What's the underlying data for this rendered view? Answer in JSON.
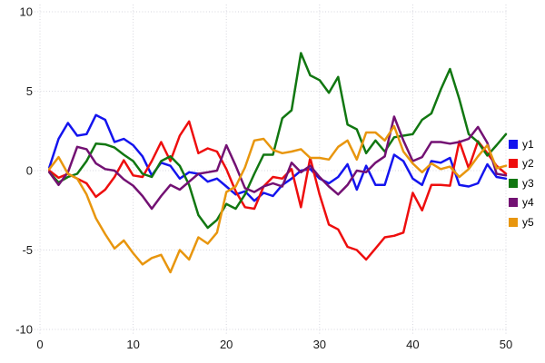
{
  "chart_data": {
    "type": "line",
    "title": "",
    "xlabel": "",
    "ylabel": "",
    "xlim": [
      0,
      50
    ],
    "ylim": [
      -10,
      10
    ],
    "x_ticks": [
      0,
      10,
      20,
      30,
      40,
      50
    ],
    "y_ticks": [
      -10,
      -5,
      0,
      5,
      10
    ],
    "grid": "dotted",
    "legend_position": "right-center",
    "x": [
      1,
      2,
      3,
      4,
      5,
      6,
      7,
      8,
      9,
      10,
      11,
      12,
      13,
      14,
      15,
      16,
      17,
      18,
      19,
      20,
      21,
      22,
      23,
      24,
      25,
      26,
      27,
      28,
      29,
      30,
      31,
      32,
      33,
      34,
      35,
      36,
      37,
      38,
      39,
      40,
      41,
      42,
      43,
      44,
      45,
      46,
      47,
      48,
      49,
      50
    ],
    "series": [
      {
        "name": "y1",
        "color": "#1414ee",
        "values": [
          0.2,
          2.0,
          3.0,
          2.2,
          2.3,
          3.5,
          3.2,
          1.8,
          2.0,
          1.6,
          0.9,
          -0.3,
          0.5,
          0.3,
          -0.5,
          -0.1,
          -0.2,
          -0.7,
          -0.5,
          -1.0,
          -1.5,
          -1.3,
          -1.9,
          -1.4,
          -1.6,
          -0.9,
          -0.5,
          0.0,
          0.1,
          -0.5,
          -0.8,
          -0.4,
          0.4,
          -1.2,
          0.3,
          -0.9,
          -0.9,
          1.0,
          0.6,
          -0.5,
          -0.9,
          0.6,
          0.5,
          0.8,
          -0.9,
          -1.0,
          -0.8,
          0.4,
          -0.4,
          -0.5
        ]
      },
      {
        "name": "y2",
        "color": "#ee0e0e",
        "values": [
          0.0,
          -0.45,
          -0.2,
          -0.5,
          -0.8,
          -1.65,
          -1.2,
          -0.4,
          0.65,
          -0.3,
          -0.4,
          0.6,
          1.8,
          0.6,
          2.2,
          3.1,
          1.1,
          1.4,
          1.2,
          0.1,
          -1.3,
          -2.3,
          -2.4,
          -1.0,
          -0.4,
          -0.5,
          0.1,
          -2.3,
          0.8,
          -1.5,
          -3.4,
          -3.7,
          -4.8,
          -5.0,
          -5.6,
          -4.9,
          -4.2,
          -4.1,
          -3.9,
          -1.4,
          -2.5,
          -0.9,
          -0.9,
          -0.95,
          1.85,
          0.15,
          1.85,
          1.1,
          0.3,
          -0.2
        ]
      },
      {
        "name": "y3",
        "color": "#117711",
        "values": [
          -0.1,
          -0.75,
          -0.4,
          -0.2,
          0.6,
          1.7,
          1.65,
          1.45,
          1.0,
          0.6,
          -0.2,
          -0.4,
          0.6,
          0.9,
          0.3,
          -0.9,
          -2.8,
          -3.6,
          -3.1,
          -2.1,
          -2.4,
          -1.5,
          -0.2,
          1.0,
          1.0,
          3.3,
          3.8,
          7.4,
          6.0,
          5.7,
          4.9,
          5.9,
          2.9,
          2.6,
          1.1,
          1.9,
          1.2,
          2.1,
          2.2,
          2.3,
          3.2,
          3.6,
          5.1,
          6.4,
          4.5,
          2.3,
          1.8,
          0.95,
          1.6,
          2.3
        ]
      },
      {
        "name": "y4",
        "color": "#731173",
        "values": [
          -0.1,
          -0.9,
          -0.1,
          1.5,
          1.35,
          0.45,
          0.1,
          0.0,
          -0.55,
          -0.95,
          -1.6,
          -2.4,
          -1.6,
          -0.9,
          -1.2,
          -0.7,
          -0.2,
          -0.1,
          0.0,
          1.6,
          0.3,
          -1.1,
          -1.35,
          -1.0,
          -0.8,
          -1.0,
          0.5,
          -0.1,
          0.3,
          -0.4,
          -1.0,
          -1.5,
          -0.9,
          0.0,
          -0.1,
          0.5,
          0.9,
          3.4,
          1.9,
          0.6,
          0.85,
          1.8,
          1.8,
          1.7,
          1.8,
          2.0,
          2.75,
          1.75,
          -0.2,
          -0.3
        ]
      },
      {
        "name": "y5",
        "color": "#e8960e",
        "values": [
          0.1,
          0.85,
          -0.2,
          -0.5,
          -1.5,
          -3.0,
          -4.0,
          -4.9,
          -4.4,
          -5.2,
          -5.9,
          -5.5,
          -5.3,
          -6.4,
          -5.0,
          -5.6,
          -4.2,
          -4.6,
          -3.9,
          -1.35,
          -1.0,
          0.2,
          1.9,
          2.0,
          1.3,
          1.1,
          1.2,
          1.35,
          0.8,
          0.8,
          0.7,
          1.5,
          1.9,
          0.7,
          2.4,
          2.4,
          1.9,
          2.8,
          1.2,
          0.45,
          -0.1,
          0.45,
          0.1,
          0.25,
          -0.4,
          0.1,
          0.9,
          1.6,
          0.15,
          0.3
        ]
      }
    ]
  },
  "legend": {
    "items": [
      {
        "label": "y1",
        "color": "#1414ee"
      },
      {
        "label": "y2",
        "color": "#ee0e0e"
      },
      {
        "label": "y3",
        "color": "#117711"
      },
      {
        "label": "y4",
        "color": "#731173"
      },
      {
        "label": "y5",
        "color": "#e8960e"
      }
    ]
  },
  "colors": {
    "background": "#ffffff",
    "grid": "#d6d6de",
    "tick_text": "#1a1a1a"
  }
}
